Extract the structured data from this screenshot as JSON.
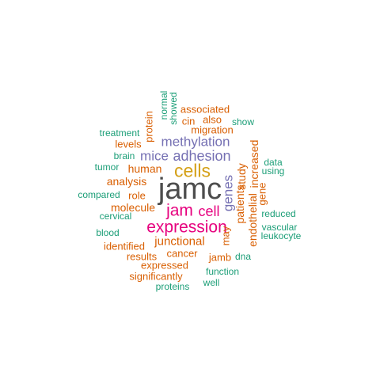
{
  "colors": {
    "dark": "#4d4d4d",
    "gold": "#d4a017",
    "magenta": "#e6007e",
    "purple": "#7570b3",
    "orange": "#d95f02",
    "green": "#1b9e77"
  },
  "words": [
    {
      "text": "jamc",
      "color": "dark"
    },
    {
      "text": "cells",
      "color": "gold"
    },
    {
      "text": "expression",
      "color": "magenta"
    },
    {
      "text": "jam",
      "color": "magenta"
    },
    {
      "text": "cell",
      "color": "magenta"
    },
    {
      "text": "methylation",
      "color": "purple"
    },
    {
      "text": "adhesion",
      "color": "purple"
    },
    {
      "text": "mice",
      "color": "purple"
    },
    {
      "text": "genes",
      "color": "purple"
    },
    {
      "text": "human",
      "color": "orange"
    },
    {
      "text": "analysis",
      "color": "orange"
    },
    {
      "text": "molecule",
      "color": "orange"
    },
    {
      "text": "junctional",
      "color": "orange"
    },
    {
      "text": "role",
      "color": "orange"
    },
    {
      "text": "cancer",
      "color": "orange"
    },
    {
      "text": "expressed",
      "color": "orange"
    },
    {
      "text": "identified",
      "color": "orange"
    },
    {
      "text": "results",
      "color": "orange"
    },
    {
      "text": "significantly",
      "color": "orange"
    },
    {
      "text": "jamb",
      "color": "orange"
    },
    {
      "text": "migration",
      "color": "orange"
    },
    {
      "text": "associated",
      "color": "orange"
    },
    {
      "text": "cin",
      "color": "orange"
    },
    {
      "text": "also",
      "color": "orange"
    },
    {
      "text": "levels",
      "color": "orange"
    },
    {
      "text": "protein",
      "color": "orange"
    },
    {
      "text": "patients",
      "color": "orange"
    },
    {
      "text": "study",
      "color": "orange"
    },
    {
      "text": "may",
      "color": "orange"
    },
    {
      "text": "endothelial",
      "color": "orange"
    },
    {
      "text": "increased",
      "color": "orange"
    },
    {
      "text": "gene",
      "color": "orange"
    },
    {
      "text": "normal",
      "color": "green"
    },
    {
      "text": "showed",
      "color": "green"
    },
    {
      "text": "show",
      "color": "green"
    },
    {
      "text": "treatment",
      "color": "green"
    },
    {
      "text": "brain",
      "color": "green"
    },
    {
      "text": "tumor",
      "color": "green"
    },
    {
      "text": "compared",
      "color": "green"
    },
    {
      "text": "cervical",
      "color": "green"
    },
    {
      "text": "blood",
      "color": "green"
    },
    {
      "text": "data",
      "color": "green"
    },
    {
      "text": "using",
      "color": "green"
    },
    {
      "text": "reduced",
      "color": "green"
    },
    {
      "text": "vascular",
      "color": "green"
    },
    {
      "text": "leukocyte",
      "color": "green"
    },
    {
      "text": "dna",
      "color": "green"
    },
    {
      "text": "function",
      "color": "green"
    },
    {
      "text": "well",
      "color": "green"
    },
    {
      "text": "proteins",
      "color": "green"
    }
  ]
}
